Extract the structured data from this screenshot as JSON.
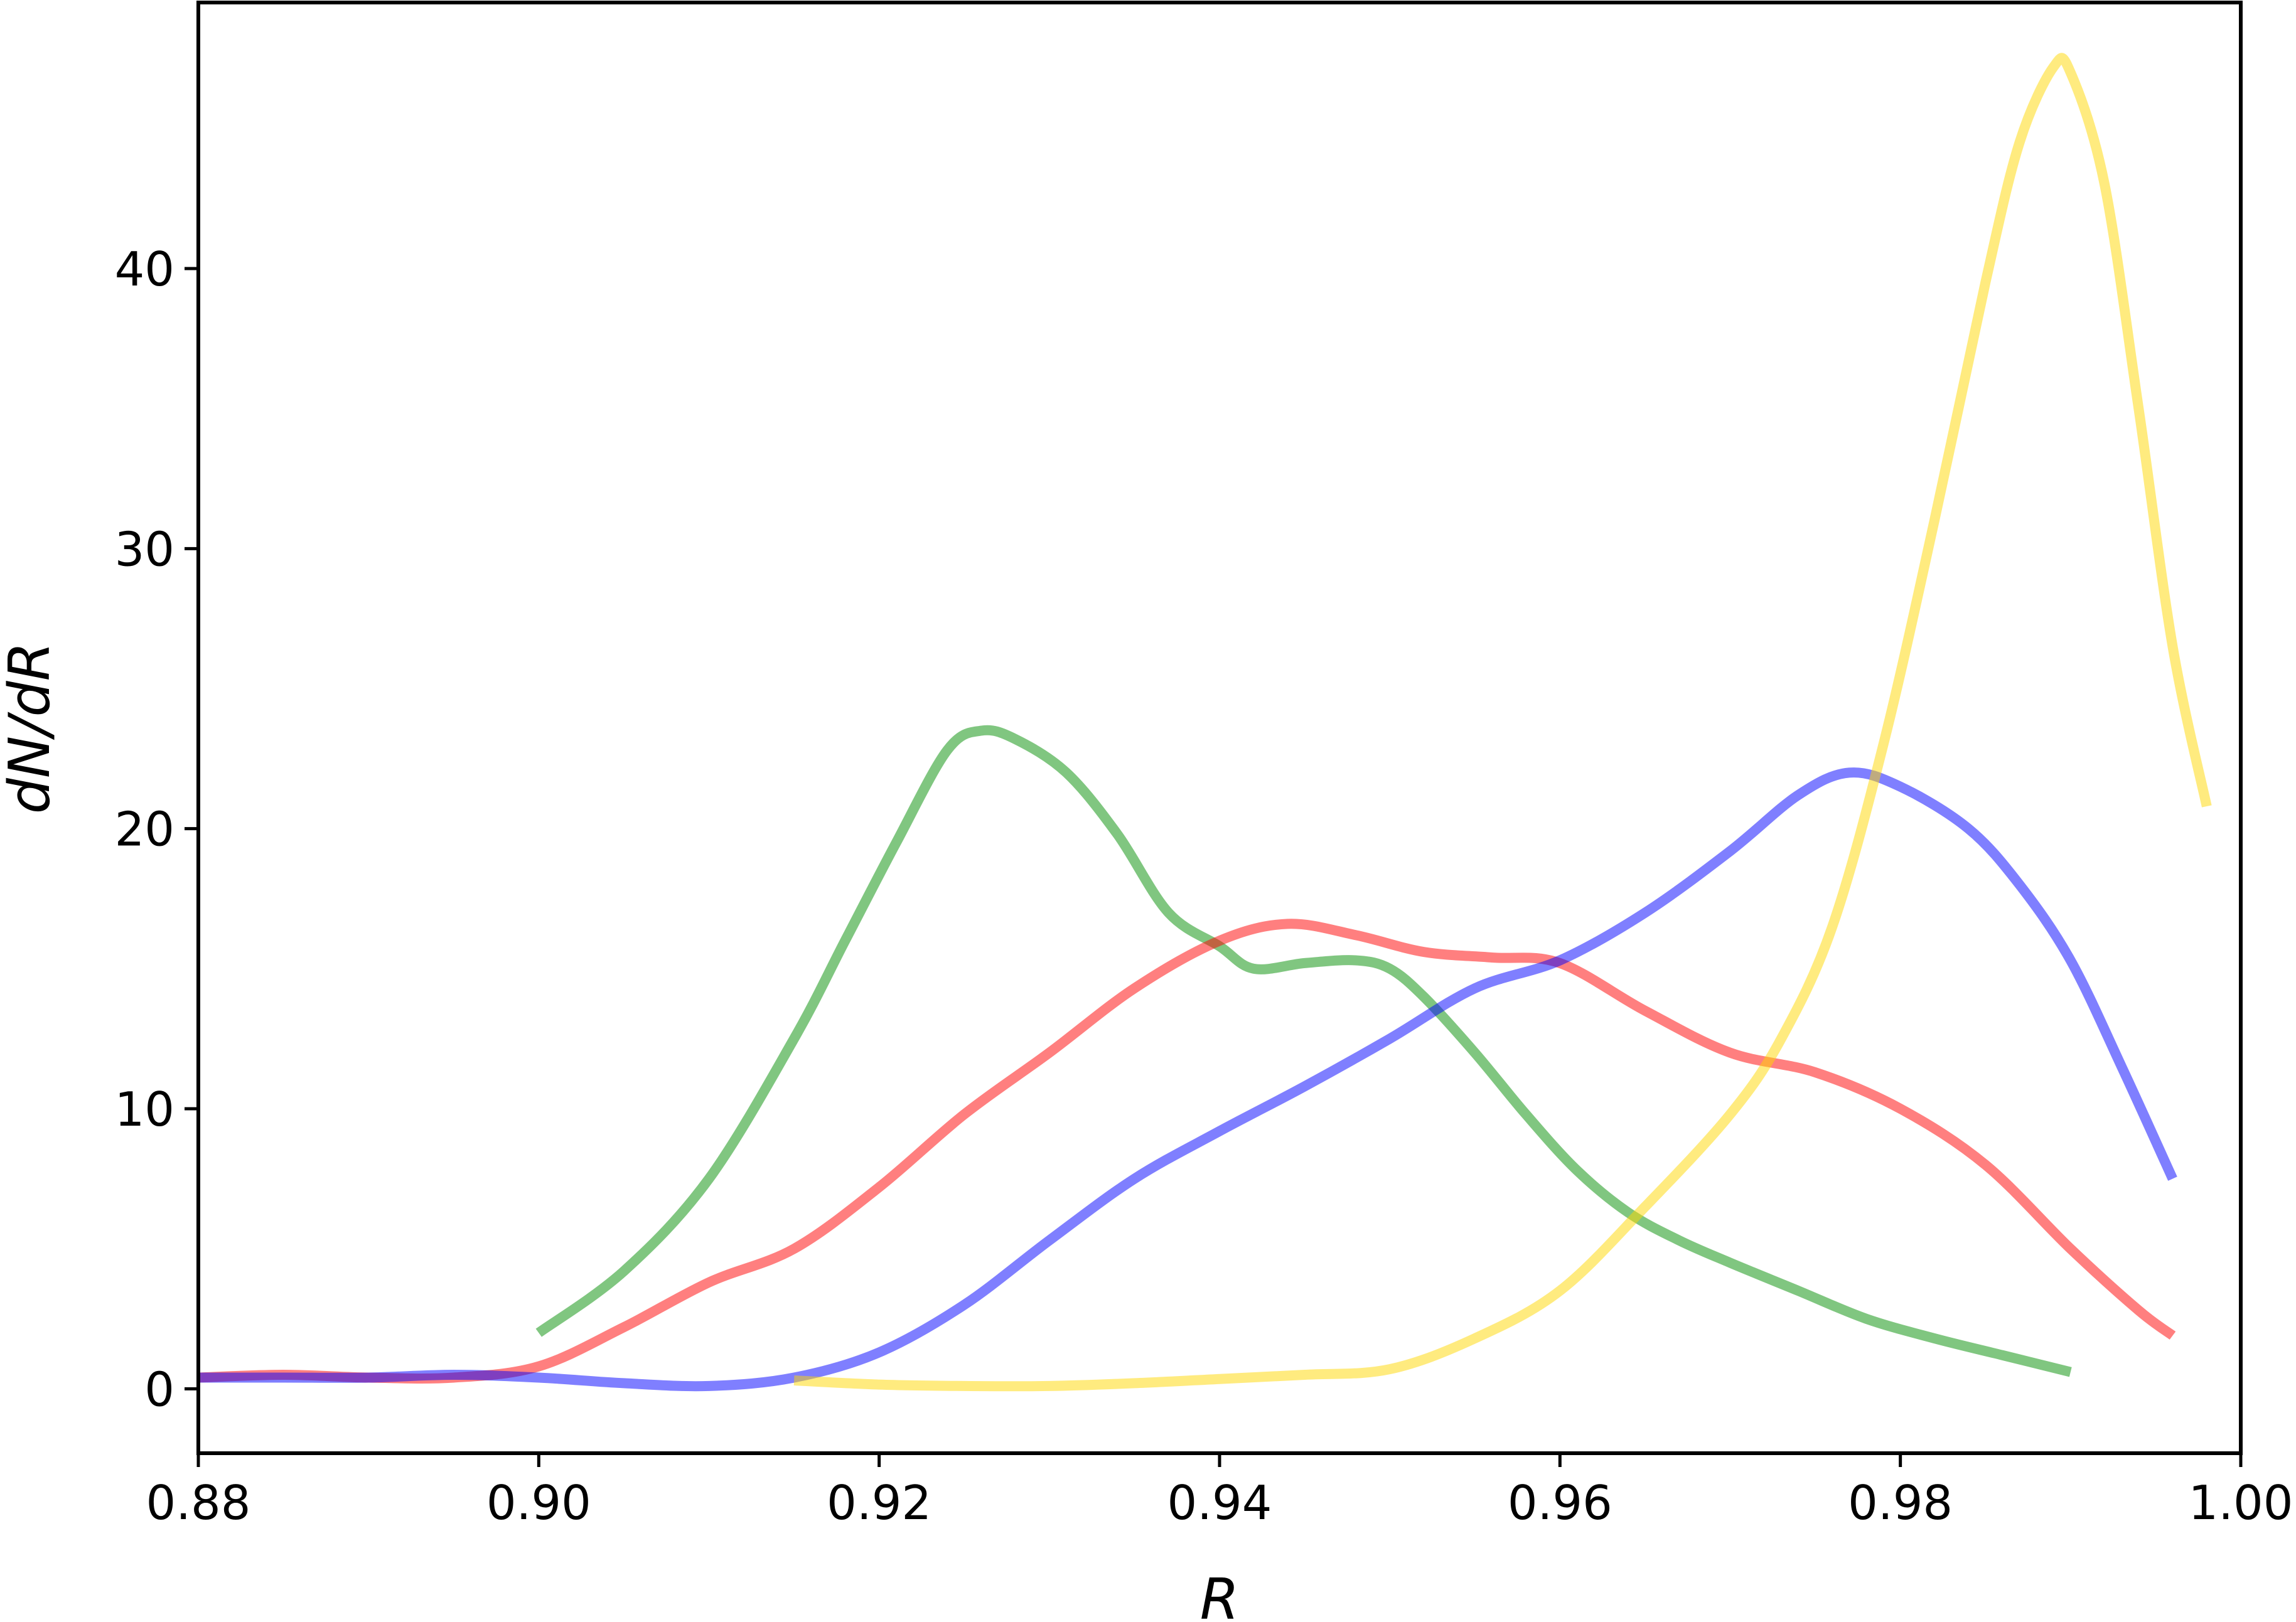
{
  "chart_data": {
    "type": "line",
    "title": "",
    "xlabel": "R",
    "ylabel": "dN/dR",
    "xlim": [
      0.88,
      1.0
    ],
    "ylim": [
      -2.3,
      49.5
    ],
    "xticks": [
      0.88,
      0.9,
      0.92,
      0.94,
      0.96,
      0.98,
      1.0
    ],
    "xtick_labels": [
      "0.88",
      "0.90",
      "0.92",
      "0.94",
      "0.96",
      "0.98",
      "1.00"
    ],
    "yticks": [
      0,
      10,
      20,
      30,
      40
    ],
    "ytick_labels": [
      "0",
      "10",
      "20",
      "30",
      "40"
    ],
    "grid": false,
    "legend": null,
    "series": [
      {
        "color": "#2ca02c",
        "opacity": 0.6,
        "points": [
          [
            0.9,
            2.0
          ],
          [
            0.905,
            4.2
          ],
          [
            0.91,
            7.5
          ],
          [
            0.915,
            12.5
          ],
          [
            0.918,
            16.0
          ],
          [
            0.921,
            19.5
          ],
          [
            0.924,
            22.8
          ],
          [
            0.926,
            23.5
          ],
          [
            0.928,
            23.2
          ],
          [
            0.931,
            22.0
          ],
          [
            0.934,
            19.8
          ],
          [
            0.937,
            17.0
          ],
          [
            0.94,
            15.8
          ],
          [
            0.942,
            15.0
          ],
          [
            0.945,
            15.2
          ],
          [
            0.948,
            15.3
          ],
          [
            0.95,
            15.0
          ],
          [
            0.952,
            14.0
          ],
          [
            0.955,
            12.0
          ],
          [
            0.958,
            9.8
          ],
          [
            0.961,
            7.8
          ],
          [
            0.964,
            6.3
          ],
          [
            0.967,
            5.3
          ],
          [
            0.97,
            4.5
          ],
          [
            0.974,
            3.5
          ],
          [
            0.978,
            2.5
          ],
          [
            0.982,
            1.8
          ],
          [
            0.986,
            1.2
          ],
          [
            0.99,
            0.6
          ]
        ]
      },
      {
        "color": "#ff0000",
        "opacity": 0.5,
        "points": [
          [
            0.88,
            0.4
          ],
          [
            0.885,
            0.5
          ],
          [
            0.89,
            0.4
          ],
          [
            0.895,
            0.4
          ],
          [
            0.9,
            0.8
          ],
          [
            0.905,
            2.2
          ],
          [
            0.91,
            3.8
          ],
          [
            0.915,
            5.0
          ],
          [
            0.92,
            7.2
          ],
          [
            0.925,
            9.8
          ],
          [
            0.93,
            12.0
          ],
          [
            0.935,
            14.3
          ],
          [
            0.94,
            16.0
          ],
          [
            0.944,
            16.6
          ],
          [
            0.948,
            16.2
          ],
          [
            0.952,
            15.6
          ],
          [
            0.956,
            15.4
          ],
          [
            0.96,
            15.2
          ],
          [
            0.965,
            13.5
          ],
          [
            0.97,
            12.0
          ],
          [
            0.975,
            11.3
          ],
          [
            0.98,
            10.0
          ],
          [
            0.985,
            8.0
          ],
          [
            0.99,
            5.0
          ],
          [
            0.994,
            2.8
          ],
          [
            0.996,
            1.9
          ]
        ]
      },
      {
        "color": "#0000ff",
        "opacity": 0.5,
        "points": [
          [
            0.88,
            0.4
          ],
          [
            0.885,
            0.4
          ],
          [
            0.89,
            0.4
          ],
          [
            0.895,
            0.5
          ],
          [
            0.9,
            0.4
          ],
          [
            0.905,
            0.2
          ],
          [
            0.91,
            0.1
          ],
          [
            0.915,
            0.4
          ],
          [
            0.92,
            1.3
          ],
          [
            0.925,
            3.0
          ],
          [
            0.93,
            5.3
          ],
          [
            0.935,
            7.5
          ],
          [
            0.94,
            9.2
          ],
          [
            0.945,
            10.8
          ],
          [
            0.95,
            12.5
          ],
          [
            0.955,
            14.3
          ],
          [
            0.96,
            15.3
          ],
          [
            0.965,
            17.0
          ],
          [
            0.97,
            19.2
          ],
          [
            0.974,
            21.2
          ],
          [
            0.977,
            22.0
          ],
          [
            0.98,
            21.5
          ],
          [
            0.984,
            20.0
          ],
          [
            0.987,
            18.0
          ],
          [
            0.99,
            15.3
          ],
          [
            0.993,
            11.5
          ],
          [
            0.996,
            7.5
          ]
        ]
      },
      {
        "color": "#ffd700",
        "opacity": 0.5,
        "points": [
          [
            0.915,
            0.3
          ],
          [
            0.92,
            0.15
          ],
          [
            0.925,
            0.1
          ],
          [
            0.93,
            0.1
          ],
          [
            0.935,
            0.2
          ],
          [
            0.94,
            0.35
          ],
          [
            0.945,
            0.5
          ],
          [
            0.95,
            0.7
          ],
          [
            0.955,
            1.8
          ],
          [
            0.96,
            3.5
          ],
          [
            0.965,
            6.5
          ],
          [
            0.97,
            9.8
          ],
          [
            0.973,
            12.5
          ],
          [
            0.976,
            16.5
          ],
          [
            0.979,
            23.0
          ],
          [
            0.982,
            31.0
          ],
          [
            0.985,
            39.5
          ],
          [
            0.987,
            44.5
          ],
          [
            0.989,
            47.2
          ],
          [
            0.99,
            47.0
          ],
          [
            0.992,
            43.0
          ],
          [
            0.994,
            35.0
          ],
          [
            0.996,
            26.5
          ],
          [
            0.998,
            20.8
          ]
        ]
      }
    ]
  }
}
